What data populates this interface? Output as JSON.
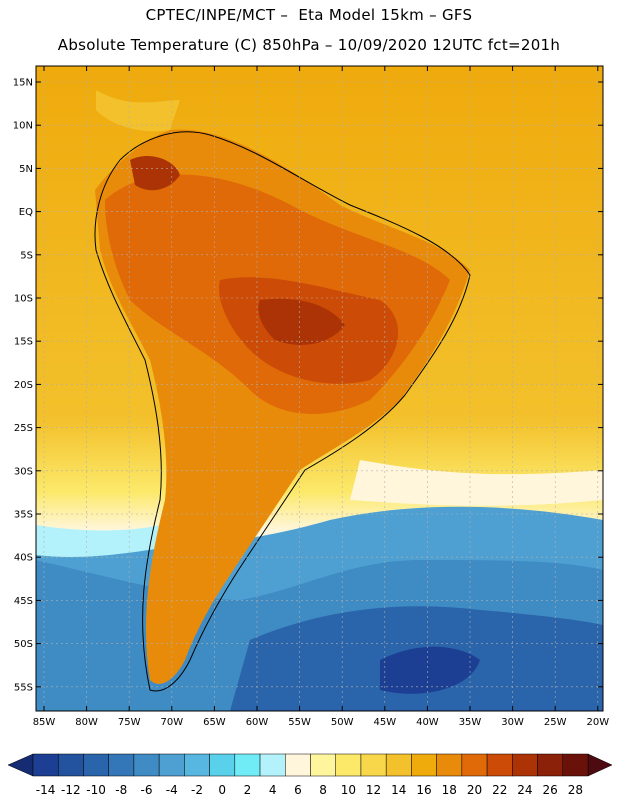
{
  "header": {
    "line1": "CPTEC/INPE/MCT –  Eta Model 15km – GFS",
    "line2": "Absolute Temperature (C) 850hPa – 10/09/2020 12UTC fct=201h"
  },
  "map": {
    "lat_labels": [
      "15N",
      "10N",
      "5N",
      "EQ",
      "5S",
      "10S",
      "15S",
      "20S",
      "25S",
      "30S",
      "35S",
      "40S",
      "45S",
      "50S",
      "55S"
    ],
    "lon_labels": [
      "85W",
      "80W",
      "75W",
      "70W",
      "65W",
      "60W",
      "55W",
      "50W",
      "45W",
      "40W",
      "35W",
      "30W",
      "25W",
      "20W"
    ]
  },
  "colorbar": {
    "labels": [
      "-14",
      "-12",
      "-10",
      "-8",
      "-6",
      "-4",
      "-2",
      "0",
      "2",
      "4",
      "6",
      "8",
      "10",
      "12",
      "14",
      "16",
      "18",
      "20",
      "22",
      "24",
      "26",
      "28"
    ],
    "colors": [
      "#1c3f94",
      "#23529e",
      "#2a64aa",
      "#3477b8",
      "#3f8cc4",
      "#4ea0d2",
      "#57b7e0",
      "#5ad1ea",
      "#70ecf6",
      "#b4f2fb",
      "#fff6dc",
      "#fff59d",
      "#fce96a",
      "#f8d84a",
      "#f3c12c",
      "#efaa0c",
      "#e98b0a",
      "#e06a07",
      "#cc4b06",
      "#ac3306",
      "#8a2108",
      "#6a1209"
    ],
    "arrow_left_color": "#162c72",
    "arrow_right_color": "#4d0a10"
  }
}
